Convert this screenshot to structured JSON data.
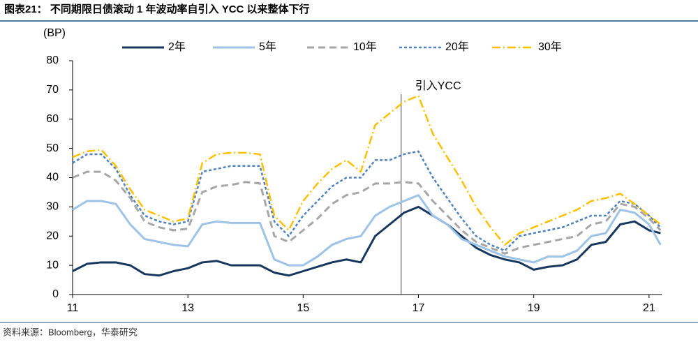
{
  "chart_data": {
    "type": "line",
    "title": "图表21： 不同期限日债滚动 1 年波动率自引入 YCC 以来整体下行",
    "y_label": "(BP)",
    "source": "资料来源：Bloomberg，华泰研究",
    "legend": "top",
    "x": [
      11,
      11.25,
      11.5,
      11.75,
      12,
      12.25,
      12.5,
      12.75,
      13,
      13.25,
      13.5,
      13.75,
      14,
      14.25,
      14.5,
      14.75,
      15,
      15.25,
      15.5,
      15.75,
      16,
      16.25,
      16.5,
      16.75,
      17,
      17.25,
      17.5,
      17.75,
      18,
      18.25,
      18.5,
      18.75,
      19,
      19.25,
      19.5,
      19.75,
      20,
      20.25,
      20.5,
      20.75,
      21,
      21.2
    ],
    "xlim": [
      11,
      21.22
    ],
    "xticks": [
      11,
      13,
      15,
      17,
      19,
      21
    ],
    "ylim": [
      0,
      80
    ],
    "yticks": [
      0,
      10,
      20,
      30,
      40,
      50,
      60,
      70,
      80
    ],
    "annotations": [
      {
        "text": "引入YCC",
        "x": 16.7
      }
    ],
    "series": [
      {
        "name": "2年",
        "color": "#17375e",
        "width": 3,
        "dash": "none",
        "values": [
          8,
          10.5,
          11,
          11,
          10,
          7,
          6.5,
          8,
          9,
          11,
          11.5,
          10,
          10,
          10,
          7.5,
          6.5,
          8,
          9.5,
          11,
          12,
          11,
          20,
          24,
          28,
          30,
          27,
          24,
          20,
          16,
          13.5,
          12,
          11,
          8.5,
          9.5,
          10,
          12,
          17,
          18,
          24,
          25,
          22,
          21
        ]
      },
      {
        "name": "5年",
        "color": "#9dc3e6",
        "width": 3,
        "dash": "none",
        "values": [
          29,
          32,
          32,
          31,
          24,
          19,
          18,
          17,
          16.5,
          24,
          25,
          24.5,
          24.5,
          24.5,
          12,
          10,
          10,
          13,
          17,
          19,
          20,
          27,
          30,
          32,
          34,
          27,
          24,
          19,
          17,
          15,
          13,
          12,
          11,
          13,
          13,
          15,
          20,
          21,
          29,
          28,
          24,
          17
        ]
      },
      {
        "name": "10年",
        "color": "#a6a6a6",
        "width": 3,
        "dash": "10,6",
        "values": [
          40,
          42,
          42,
          39,
          33,
          25,
          23,
          22,
          22.5,
          35,
          37,
          37.5,
          38.5,
          38,
          20,
          18,
          22,
          26,
          31,
          34,
          35,
          38,
          38,
          38.5,
          38,
          32,
          27,
          22,
          18,
          16,
          14,
          16,
          17,
          18,
          19,
          20,
          24,
          25,
          31,
          30,
          26,
          22
        ]
      },
      {
        "name": "20年",
        "color": "#4f81bd",
        "width": 2.5,
        "dash": "4,3",
        "values": [
          45,
          48,
          48,
          43,
          34,
          27,
          25,
          24,
          25,
          42,
          43,
          44,
          44,
          44,
          25,
          20,
          27,
          32,
          37,
          40,
          40,
          46,
          46,
          48,
          49,
          40,
          33,
          26,
          20,
          17,
          15,
          20,
          21,
          22,
          23,
          25,
          27,
          27,
          32,
          31,
          27,
          23
        ]
      },
      {
        "name": "30年",
        "color": "#ffc000",
        "width": 2.5,
        "dash": "12,4,2,4",
        "values": [
          47,
          49,
          49.5,
          44,
          36,
          29,
          27,
          25,
          26,
          45,
          48,
          48.5,
          48.5,
          48,
          27,
          22,
          32,
          38,
          43,
          46,
          42,
          58,
          62,
          66,
          68,
          55,
          47,
          39,
          30,
          23,
          17,
          21,
          23,
          25,
          27,
          29,
          32,
          33,
          34.5,
          31,
          27,
          24
        ]
      }
    ]
  }
}
